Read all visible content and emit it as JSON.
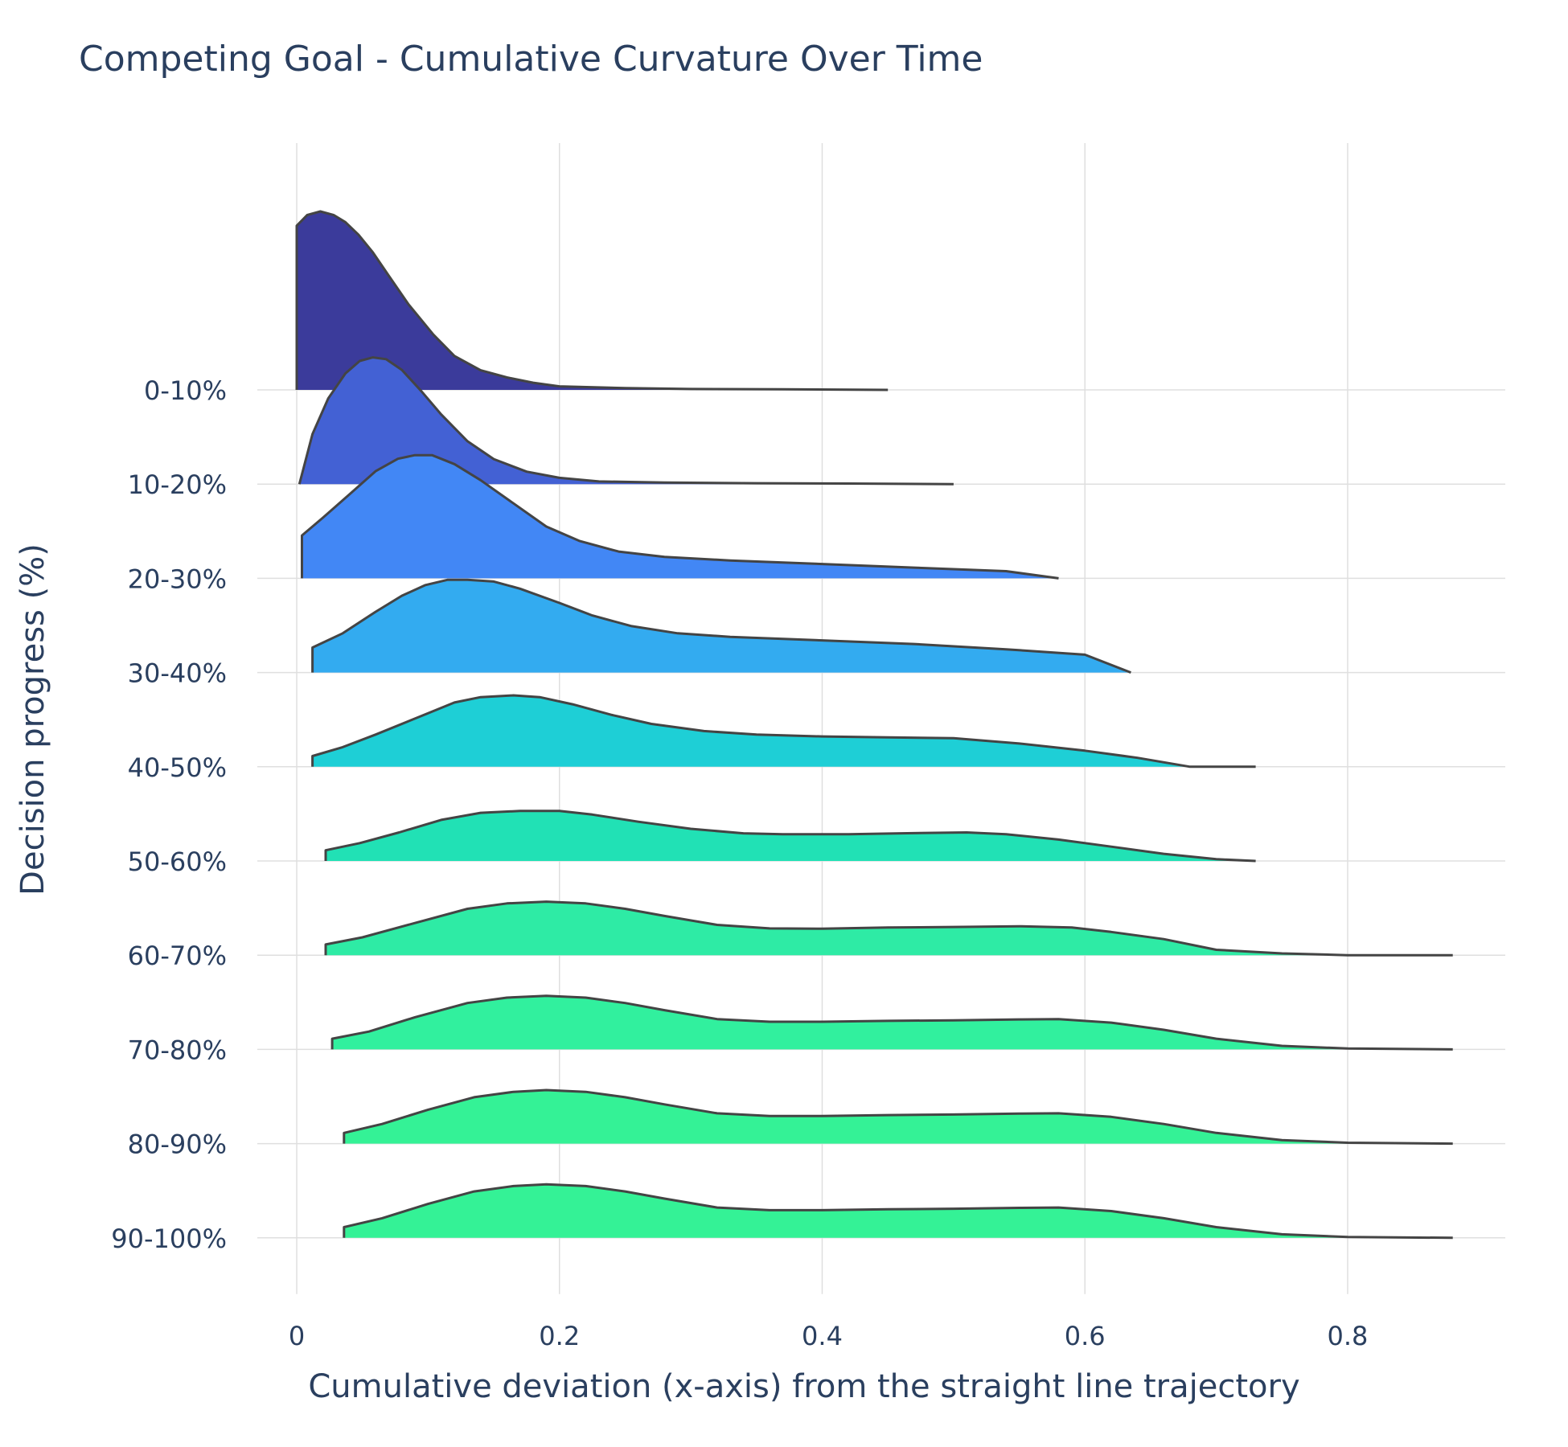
{
  "chart_data": {
    "type": "ridgeline",
    "title": "Competing Goal - Cumulative Curvature Over Time",
    "xlabel": "Cumulative deviation (x-axis) from the straight line trajectory",
    "ylabel": "Decision progress (%)",
    "xlim": [
      -0.03,
      0.92
    ],
    "x_ticks": [
      {
        "value": 0,
        "label": "0"
      },
      {
        "value": 0.2,
        "label": "0.2"
      },
      {
        "value": 0.4,
        "label": "0.4"
      },
      {
        "value": 0.6,
        "label": "0.6"
      },
      {
        "value": 0.8,
        "label": "0.8"
      }
    ],
    "grid": true,
    "legend": "none",
    "series": [
      {
        "label": "0-10%",
        "color": "#3b3b9b",
        "points": [
          [
            0.0,
            0.92
          ],
          [
            0.008,
            0.98
          ],
          [
            0.018,
            1.0
          ],
          [
            0.028,
            0.98
          ],
          [
            0.037,
            0.94
          ],
          [
            0.047,
            0.87
          ],
          [
            0.058,
            0.77
          ],
          [
            0.07,
            0.64
          ],
          [
            0.085,
            0.48
          ],
          [
            0.104,
            0.31
          ],
          [
            0.12,
            0.19
          ],
          [
            0.14,
            0.11
          ],
          [
            0.16,
            0.07
          ],
          [
            0.18,
            0.04
          ],
          [
            0.2,
            0.02
          ],
          [
            0.25,
            0.01
          ],
          [
            0.3,
            0.005
          ],
          [
            0.37,
            0.003
          ],
          [
            0.45,
            0.0
          ]
        ]
      },
      {
        "label": "10-20%",
        "color": "#4361d4",
        "points": [
          [
            0.002,
            0.0
          ],
          [
            0.012,
            0.28
          ],
          [
            0.024,
            0.48
          ],
          [
            0.037,
            0.62
          ],
          [
            0.048,
            0.69
          ],
          [
            0.058,
            0.71
          ],
          [
            0.068,
            0.7
          ],
          [
            0.08,
            0.64
          ],
          [
            0.095,
            0.52
          ],
          [
            0.11,
            0.39
          ],
          [
            0.13,
            0.24
          ],
          [
            0.15,
            0.14
          ],
          [
            0.175,
            0.07
          ],
          [
            0.2,
            0.035
          ],
          [
            0.23,
            0.015
          ],
          [
            0.28,
            0.009
          ],
          [
            0.35,
            0.005
          ],
          [
            0.42,
            0.003
          ],
          [
            0.5,
            0.0
          ]
        ]
      },
      {
        "label": "20-30%",
        "color": "#4287f5",
        "points": [
          [
            0.004,
            0.24
          ],
          [
            0.02,
            0.34
          ],
          [
            0.04,
            0.47
          ],
          [
            0.06,
            0.6
          ],
          [
            0.077,
            0.67
          ],
          [
            0.09,
            0.69
          ],
          [
            0.103,
            0.69
          ],
          [
            0.12,
            0.64
          ],
          [
            0.14,
            0.55
          ],
          [
            0.165,
            0.42
          ],
          [
            0.19,
            0.29
          ],
          [
            0.215,
            0.21
          ],
          [
            0.245,
            0.15
          ],
          [
            0.28,
            0.12
          ],
          [
            0.33,
            0.1
          ],
          [
            0.4,
            0.08
          ],
          [
            0.47,
            0.06
          ],
          [
            0.54,
            0.04
          ],
          [
            0.58,
            0.0
          ]
        ]
      },
      {
        "label": "30-40%",
        "color": "#33abf0",
        "points": [
          [
            0.012,
            0.14
          ],
          [
            0.035,
            0.22
          ],
          [
            0.06,
            0.34
          ],
          [
            0.08,
            0.43
          ],
          [
            0.098,
            0.49
          ],
          [
            0.115,
            0.52
          ],
          [
            0.13,
            0.52
          ],
          [
            0.15,
            0.51
          ],
          [
            0.17,
            0.47
          ],
          [
            0.2,
            0.39
          ],
          [
            0.225,
            0.32
          ],
          [
            0.255,
            0.26
          ],
          [
            0.29,
            0.22
          ],
          [
            0.33,
            0.2
          ],
          [
            0.4,
            0.18
          ],
          [
            0.47,
            0.16
          ],
          [
            0.54,
            0.13
          ],
          [
            0.6,
            0.1
          ],
          [
            0.635,
            0.0
          ]
        ]
      },
      {
        "label": "40-50%",
        "color": "#1ecfd6",
        "points": [
          [
            0.012,
            0.06
          ],
          [
            0.035,
            0.11
          ],
          [
            0.06,
            0.18
          ],
          [
            0.09,
            0.27
          ],
          [
            0.12,
            0.36
          ],
          [
            0.14,
            0.39
          ],
          [
            0.165,
            0.4
          ],
          [
            0.185,
            0.39
          ],
          [
            0.21,
            0.35
          ],
          [
            0.24,
            0.29
          ],
          [
            0.27,
            0.24
          ],
          [
            0.31,
            0.2
          ],
          [
            0.35,
            0.18
          ],
          [
            0.4,
            0.17
          ],
          [
            0.45,
            0.165
          ],
          [
            0.5,
            0.16
          ],
          [
            0.55,
            0.13
          ],
          [
            0.6,
            0.09
          ],
          [
            0.64,
            0.05
          ],
          [
            0.68,
            0.0
          ],
          [
            0.73,
            0.0
          ]
        ]
      },
      {
        "label": "50-60%",
        "color": "#21e1b5",
        "points": [
          [
            0.022,
            0.06
          ],
          [
            0.048,
            0.1
          ],
          [
            0.078,
            0.16
          ],
          [
            0.11,
            0.23
          ],
          [
            0.14,
            0.27
          ],
          [
            0.17,
            0.28
          ],
          [
            0.2,
            0.28
          ],
          [
            0.225,
            0.26
          ],
          [
            0.26,
            0.22
          ],
          [
            0.3,
            0.18
          ],
          [
            0.34,
            0.155
          ],
          [
            0.37,
            0.15
          ],
          [
            0.42,
            0.15
          ],
          [
            0.46,
            0.155
          ],
          [
            0.51,
            0.16
          ],
          [
            0.54,
            0.15
          ],
          [
            0.58,
            0.12
          ],
          [
            0.62,
            0.08
          ],
          [
            0.66,
            0.04
          ],
          [
            0.7,
            0.01
          ],
          [
            0.73,
            0.0
          ]
        ]
      },
      {
        "label": "60-70%",
        "color": "#2eeba5",
        "points": [
          [
            0.022,
            0.06
          ],
          [
            0.05,
            0.1
          ],
          [
            0.09,
            0.18
          ],
          [
            0.13,
            0.26
          ],
          [
            0.16,
            0.29
          ],
          [
            0.19,
            0.3
          ],
          [
            0.22,
            0.29
          ],
          [
            0.25,
            0.26
          ],
          [
            0.28,
            0.22
          ],
          [
            0.32,
            0.17
          ],
          [
            0.36,
            0.15
          ],
          [
            0.4,
            0.148
          ],
          [
            0.45,
            0.155
          ],
          [
            0.5,
            0.158
          ],
          [
            0.55,
            0.162
          ],
          [
            0.59,
            0.155
          ],
          [
            0.62,
            0.13
          ],
          [
            0.66,
            0.09
          ],
          [
            0.7,
            0.03
          ],
          [
            0.75,
            0.01
          ],
          [
            0.8,
            0.0
          ],
          [
            0.88,
            0.0
          ]
        ]
      },
      {
        "label": "70-80%",
        "color": "#31f09e",
        "points": [
          [
            0.027,
            0.06
          ],
          [
            0.055,
            0.1
          ],
          [
            0.09,
            0.18
          ],
          [
            0.13,
            0.26
          ],
          [
            0.16,
            0.29
          ],
          [
            0.19,
            0.3
          ],
          [
            0.22,
            0.29
          ],
          [
            0.25,
            0.26
          ],
          [
            0.28,
            0.22
          ],
          [
            0.32,
            0.17
          ],
          [
            0.36,
            0.155
          ],
          [
            0.4,
            0.155
          ],
          [
            0.45,
            0.16
          ],
          [
            0.5,
            0.163
          ],
          [
            0.55,
            0.168
          ],
          [
            0.58,
            0.17
          ],
          [
            0.62,
            0.15
          ],
          [
            0.66,
            0.11
          ],
          [
            0.7,
            0.06
          ],
          [
            0.75,
            0.02
          ],
          [
            0.8,
            0.005
          ],
          [
            0.88,
            0.0
          ]
        ]
      },
      {
        "label": "80-90%",
        "color": "#34f296",
        "points": [
          [
            0.036,
            0.06
          ],
          [
            0.065,
            0.11
          ],
          [
            0.1,
            0.19
          ],
          [
            0.135,
            0.26
          ],
          [
            0.165,
            0.29
          ],
          [
            0.19,
            0.3
          ],
          [
            0.22,
            0.29
          ],
          [
            0.25,
            0.26
          ],
          [
            0.28,
            0.22
          ],
          [
            0.32,
            0.17
          ],
          [
            0.36,
            0.155
          ],
          [
            0.4,
            0.155
          ],
          [
            0.45,
            0.16
          ],
          [
            0.5,
            0.163
          ],
          [
            0.55,
            0.168
          ],
          [
            0.58,
            0.17
          ],
          [
            0.62,
            0.15
          ],
          [
            0.66,
            0.11
          ],
          [
            0.7,
            0.06
          ],
          [
            0.75,
            0.02
          ],
          [
            0.8,
            0.005
          ],
          [
            0.88,
            0.0
          ]
        ]
      },
      {
        "label": "90-100%",
        "color": "#34f296",
        "points": [
          [
            0.036,
            0.06
          ],
          [
            0.065,
            0.11
          ],
          [
            0.1,
            0.19
          ],
          [
            0.135,
            0.26
          ],
          [
            0.165,
            0.29
          ],
          [
            0.19,
            0.3
          ],
          [
            0.22,
            0.29
          ],
          [
            0.25,
            0.26
          ],
          [
            0.28,
            0.22
          ],
          [
            0.32,
            0.17
          ],
          [
            0.36,
            0.155
          ],
          [
            0.4,
            0.155
          ],
          [
            0.45,
            0.16
          ],
          [
            0.5,
            0.163
          ],
          [
            0.55,
            0.168
          ],
          [
            0.58,
            0.17
          ],
          [
            0.62,
            0.15
          ],
          [
            0.66,
            0.11
          ],
          [
            0.7,
            0.06
          ],
          [
            0.75,
            0.02
          ],
          [
            0.8,
            0.005
          ],
          [
            0.88,
            0.0
          ]
        ]
      }
    ]
  }
}
